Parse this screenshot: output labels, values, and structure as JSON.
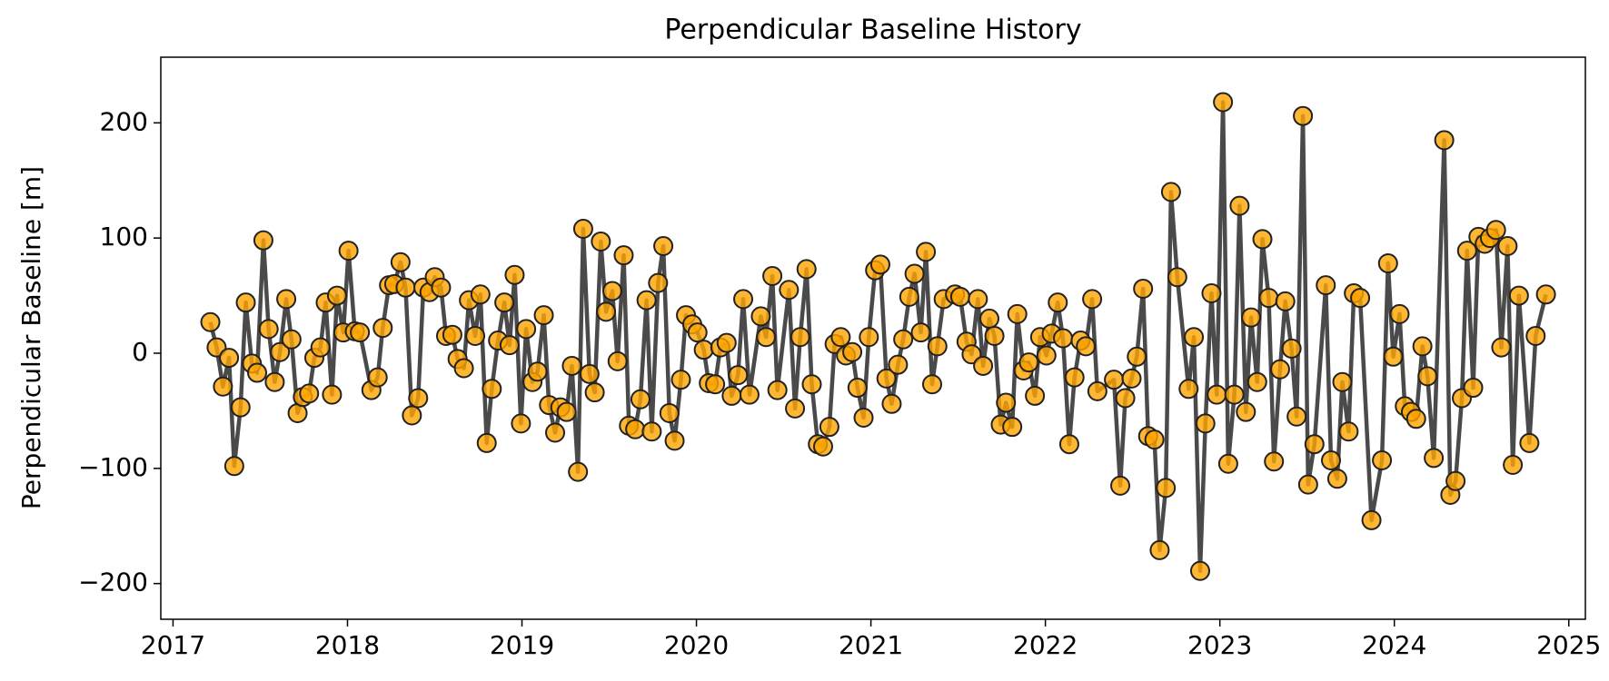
{
  "chart_data": {
    "type": "line",
    "title": "Perpendicular Baseline History",
    "ylabel": "Perpendicular Baseline [m]",
    "x": [
      2017.214,
      2017.25,
      2017.286,
      2017.321,
      2017.351,
      2017.387,
      2017.417,
      2017.452,
      2017.482,
      2017.518,
      2017.548,
      2017.583,
      2017.613,
      2017.649,
      2017.679,
      2017.714,
      2017.744,
      2017.78,
      2017.81,
      2017.845,
      2017.875,
      2017.911,
      2017.94,
      2017.976,
      2018.006,
      2018.042,
      2018.071,
      2018.137,
      2018.173,
      2018.202,
      2018.238,
      2018.268,
      2018.304,
      2018.333,
      2018.369,
      2018.405,
      2018.435,
      2018.47,
      2018.5,
      2018.536,
      2018.565,
      2018.601,
      2018.631,
      2018.667,
      2018.696,
      2018.732,
      2018.762,
      2018.798,
      2018.827,
      2018.863,
      2018.899,
      2018.929,
      2018.958,
      2018.994,
      2019.024,
      2019.06,
      2019.089,
      2019.125,
      2019.155,
      2019.19,
      2019.22,
      2019.256,
      2019.286,
      2019.321,
      2019.351,
      2019.387,
      2019.417,
      2019.452,
      2019.482,
      2019.518,
      2019.548,
      2019.583,
      2019.613,
      2019.649,
      2019.679,
      2019.714,
      2019.744,
      2019.78,
      2019.81,
      2019.845,
      2019.875,
      2019.911,
      2019.94,
      2019.976,
      2020.006,
      2020.042,
      2020.071,
      2020.107,
      2020.137,
      2020.173,
      2020.202,
      2020.238,
      2020.268,
      2020.304,
      2020.369,
      2020.399,
      2020.435,
      2020.464,
      2020.53,
      2020.565,
      2020.595,
      2020.631,
      2020.661,
      2020.696,
      2020.726,
      2020.762,
      2020.792,
      2020.827,
      2020.857,
      2020.893,
      2020.923,
      2020.958,
      2020.988,
      2021.024,
      2021.054,
      2021.089,
      2021.119,
      2021.155,
      2021.185,
      2021.22,
      2021.25,
      2021.286,
      2021.315,
      2021.351,
      2021.381,
      2021.417,
      2021.482,
      2021.512,
      2021.548,
      2021.577,
      2021.613,
      2021.643,
      2021.679,
      2021.708,
      2021.744,
      2021.774,
      2021.81,
      2021.839,
      2021.875,
      2021.905,
      2021.94,
      2021.97,
      2022.006,
      2022.036,
      2022.071,
      2022.101,
      2022.137,
      2022.167,
      2022.202,
      2022.232,
      2022.268,
      2022.298,
      2022.393,
      2022.429,
      2022.458,
      2022.494,
      2022.524,
      2022.56,
      2022.589,
      2022.625,
      2022.655,
      2022.69,
      2022.72,
      2022.756,
      2022.821,
      2022.851,
      2022.887,
      2022.917,
      2022.952,
      2022.982,
      2023.018,
      2023.048,
      2023.083,
      2023.113,
      2023.149,
      2023.179,
      2023.214,
      2023.244,
      2023.28,
      2023.31,
      2023.345,
      2023.375,
      2023.411,
      2023.44,
      2023.476,
      2023.506,
      2023.542,
      2023.607,
      2023.637,
      2023.673,
      2023.702,
      2023.738,
      2023.768,
      2023.804,
      2023.869,
      2023.929,
      2023.964,
      2023.994,
      2024.03,
      2024.06,
      2024.095,
      2024.125,
      2024.161,
      2024.19,
      2024.226,
      2024.286,
      2024.321,
      2024.351,
      2024.387,
      2024.417,
      2024.452,
      2024.482,
      2024.518,
      2024.548,
      2024.583,
      2024.613,
      2024.649,
      2024.679,
      2024.714,
      2024.774,
      2024.81,
      2024.869
    ],
    "values": [
      27,
      5,
      -29,
      -4,
      -98,
      -47,
      44,
      -9,
      -17,
      98,
      21,
      -25,
      1,
      47,
      12,
      -52,
      -38,
      -35,
      -4,
      5,
      44,
      -36,
      50,
      18,
      89,
      19,
      18,
      -32,
      -21,
      22,
      59,
      60,
      79,
      57,
      -54,
      -39,
      57,
      53,
      66,
      57,
      15,
      16,
      -5,
      -13,
      46,
      15,
      51,
      -78,
      -31,
      11,
      44,
      7,
      68,
      -61,
      21,
      -25,
      -16,
      33,
      -45,
      -69,
      -47,
      -51,
      -11,
      -103,
      108,
      -18,
      -34,
      97,
      36,
      54,
      -7,
      85,
      -63,
      -66,
      -40,
      46,
      -68,
      61,
      93,
      -52,
      -76,
      -23,
      33,
      25,
      18,
      3,
      -26,
      -27,
      5,
      9,
      -37,
      -19,
      47,
      -36,
      32,
      14,
      67,
      -32,
      55,
      -48,
      14,
      73,
      -27,
      -79,
      -81,
      -64,
      8,
      14,
      -2,
      1,
      -30,
      -56,
      14,
      72,
      77,
      -22,
      -44,
      -10,
      12,
      49,
      69,
      18,
      88,
      -27,
      6,
      47,
      51,
      49,
      10,
      -1,
      47,
      -11,
      30,
      15,
      -62,
      -43,
      -64,
      34,
      -15,
      -8,
      -37,
      14,
      -2,
      17,
      44,
      13,
      -79,
      -21,
      11,
      6,
      47,
      -33,
      -23,
      -115,
      -39,
      -22,
      -3,
      56,
      -72,
      -75,
      -171,
      -117,
      140,
      66,
      -31,
      14,
      -189,
      -61,
      52,
      -36,
      218,
      -96,
      -36,
      128,
      -51,
      31,
      -25,
      99,
      48,
      -94,
      -14,
      45,
      4,
      -55,
      206,
      -114,
      -79,
      59,
      -93,
      -109,
      -25,
      -68,
      52,
      48,
      -145,
      -93,
      78,
      -3,
      34,
      -46,
      -51,
      -57,
      6,
      -20,
      -91,
      185,
      -123,
      -111,
      -39,
      89,
      -30,
      101,
      95,
      100,
      107,
      5,
      93,
      -97,
      50,
      -78,
      15,
      51
    ],
    "color": "#ffa500",
    "line_color": "#404040",
    "xlim": [
      2016.93,
      2025.095
    ],
    "xticks": [
      2017,
      2018,
      2019,
      2020,
      2021,
      2022,
      2023,
      2024,
      2025
    ],
    "ylim": [
      -231,
      257
    ],
    "yticks": [
      {
        "value": -200,
        "label": "−200"
      },
      {
        "value": -100,
        "label": "−100"
      },
      0,
      100,
      200
    ]
  }
}
